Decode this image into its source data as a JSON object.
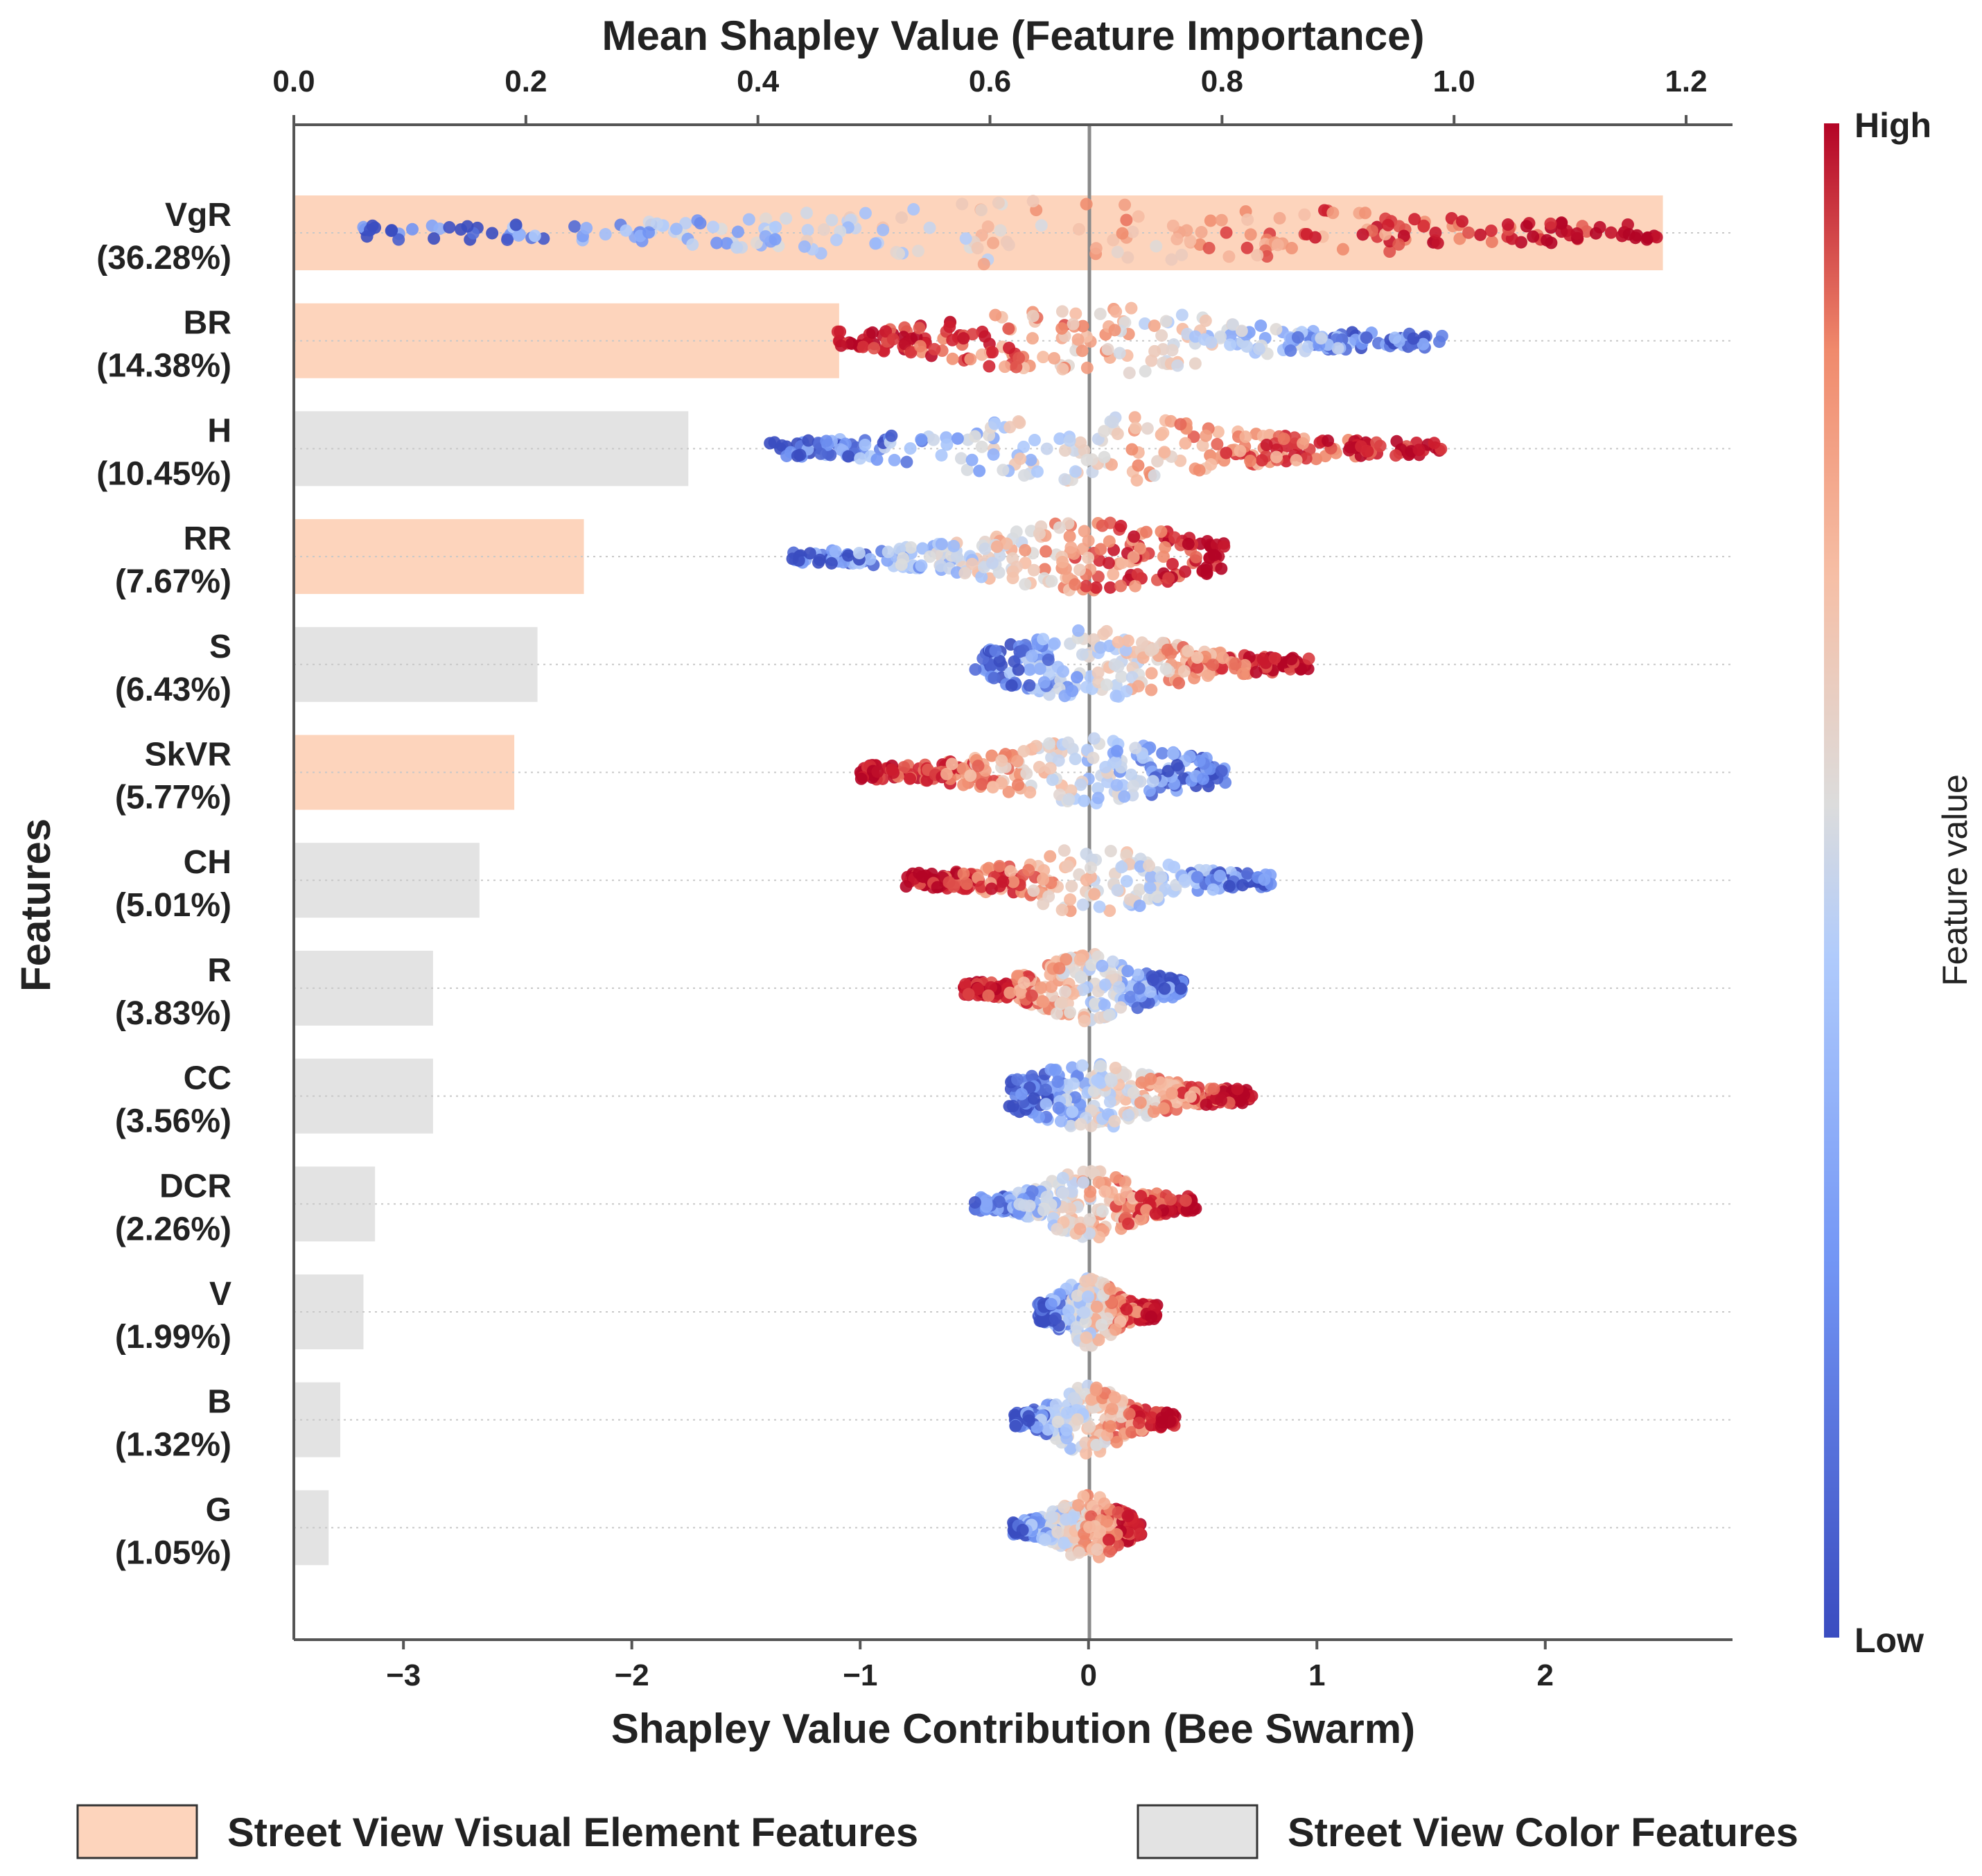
{
  "chart_data": {
    "type": "bar",
    "subtype": "bar + beeswarm (SHAP summary)",
    "title_top": "Mean Shapley Value (Feature Importance)",
    "xlabel_bottom": "Shapley Value Contribution (Bee Swarm)",
    "ylabel": "Features",
    "top_axis": {
      "range": [
        0.0,
        1.24
      ],
      "ticks": [
        0.0,
        0.2,
        0.4,
        0.6,
        0.8,
        1.0,
        1.2
      ],
      "tick_labels": [
        "0.0",
        "0.2",
        "0.4",
        "0.6",
        "0.8",
        "1.0",
        "1.2"
      ]
    },
    "bottom_axis": {
      "range": [
        -3.48,
        2.82
      ],
      "ticks": [
        -3,
        -2,
        -1,
        0,
        1,
        2
      ],
      "tick_labels": [
        "−3",
        "−2",
        "−1",
        "0",
        "1",
        "2"
      ]
    },
    "grid": false,
    "colorbar": {
      "label": "Feature value",
      "high_label": "High",
      "low_label": "Low",
      "colors": [
        "#3a4cc0",
        "#7396f5",
        "#b0cbfc",
        "#dcdcdc",
        "#f6bfa6",
        "#f08a6c",
        "#d02030",
        "#b40426"
      ]
    },
    "features": [
      {
        "name": "VgR",
        "percent": "(36.28%)",
        "mean_shap": 1.18,
        "group": "visual",
        "swarm": [
          -3.2,
          2.5
        ]
      },
      {
        "name": "BR",
        "percent": "(14.38%)",
        "mean_shap": 0.47,
        "group": "visual",
        "swarm": [
          -1.1,
          1.55
        ]
      },
      {
        "name": "H",
        "percent": "(10.45%)",
        "mean_shap": 0.34,
        "group": "color",
        "swarm": [
          -1.4,
          1.55
        ]
      },
      {
        "name": "RR",
        "percent": "(7.67%)",
        "mean_shap": 0.25,
        "group": "visual",
        "swarm": [
          -1.3,
          0.6
        ]
      },
      {
        "name": "S",
        "percent": "(6.43%)",
        "mean_shap": 0.21,
        "group": "color",
        "swarm": [
          -0.5,
          0.97
        ]
      },
      {
        "name": "SkVR",
        "percent": "(5.77%)",
        "mean_shap": 0.19,
        "group": "visual",
        "swarm": [
          -1.0,
          0.6
        ]
      },
      {
        "name": "CH",
        "percent": "(5.01%)",
        "mean_shap": 0.16,
        "group": "color",
        "swarm": [
          -0.8,
          0.8
        ]
      },
      {
        "name": "R",
        "percent": "(3.83%)",
        "mean_shap": 0.12,
        "group": "color",
        "swarm": [
          -0.55,
          0.42
        ]
      },
      {
        "name": "CC",
        "percent": "(3.56%)",
        "mean_shap": 0.12,
        "group": "color",
        "swarm": [
          -0.35,
          0.72
        ]
      },
      {
        "name": "DCR",
        "percent": "(2.26%)",
        "mean_shap": 0.07,
        "group": "color",
        "swarm": [
          -0.5,
          0.47
        ]
      },
      {
        "name": "V",
        "percent": "(1.99%)",
        "mean_shap": 0.06,
        "group": "color",
        "swarm": [
          -0.22,
          0.3
        ]
      },
      {
        "name": "B",
        "percent": "(1.32%)",
        "mean_shap": 0.04,
        "group": "color",
        "swarm": [
          -0.33,
          0.38
        ]
      },
      {
        "name": "G",
        "percent": "(1.05%)",
        "mean_shap": 0.03,
        "group": "color",
        "swarm": [
          -0.33,
          0.23
        ]
      }
    ],
    "legend": {
      "position": "bottom",
      "items": [
        {
          "label": "Street View Visual Element Features",
          "color": "#fdd4bc"
        },
        {
          "label": "Street View Color Features",
          "color": "#e3e3e3"
        }
      ]
    }
  }
}
